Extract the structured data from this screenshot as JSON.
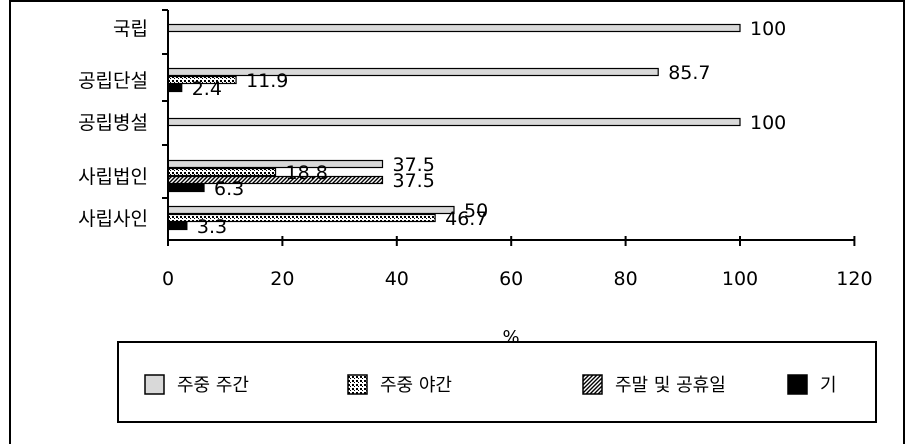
{
  "chart_data": {
    "type": "bar",
    "orientation": "horizontal",
    "categories": [
      "국립",
      "공립단설",
      "공립병설",
      "사립법인",
      "사립사인"
    ],
    "series": [
      {
        "name": "주중 주간",
        "values": [
          100,
          85.7,
          100,
          37.5,
          50
        ],
        "pattern": "light-gray"
      },
      {
        "name": "주중 야간",
        "values": [
          null,
          11.9,
          null,
          18.8,
          46.7
        ],
        "pattern": "dotted"
      },
      {
        "name": "주말 및 공휴일",
        "values": [
          null,
          null,
          null,
          37.5,
          null
        ],
        "pattern": "hatched"
      },
      {
        "name": "기",
        "values": [
          null,
          2.4,
          null,
          6.3,
          3.3
        ],
        "pattern": "solid-black"
      }
    ],
    "data_labels": [
      {
        "category": "국립",
        "series": "주중 주간",
        "text": "100"
      },
      {
        "category": "공립단설",
        "series": "주중 주간",
        "text": "85.7"
      },
      {
        "category": "공립단설",
        "series": "주중 야간",
        "text": "11.9"
      },
      {
        "category": "공립단설",
        "series": "기",
        "text": "2.4"
      },
      {
        "category": "공립병설",
        "series": "주중 주간",
        "text": "100"
      },
      {
        "category": "사립법인",
        "series": "주중 주간",
        "text": "37.5"
      },
      {
        "category": "사립법인",
        "series": "주중 야간",
        "text": "18.8"
      },
      {
        "category": "사립법인",
        "series": "주말 및 공휴일",
        "text": "37.5"
      },
      {
        "category": "사립법인",
        "series": "기",
        "text": "6.3"
      },
      {
        "category": "사립사인",
        "series": "주중 주간",
        "text": "50"
      },
      {
        "category": "사립사인",
        "series": "주중 야간",
        "text": "46.7"
      },
      {
        "category": "사립사인",
        "series": "기",
        "text": "3.3"
      }
    ],
    "x_ticks": [
      "0",
      "20",
      "40",
      "60",
      "80",
      "100",
      "120"
    ],
    "xlim": [
      0,
      120
    ],
    "xlabel": "%",
    "title": "",
    "grid": false,
    "legend_position": "bottom",
    "colors": {
      "light_gray": "#d9d9d9",
      "black": "#000000",
      "white": "#ffffff"
    }
  }
}
